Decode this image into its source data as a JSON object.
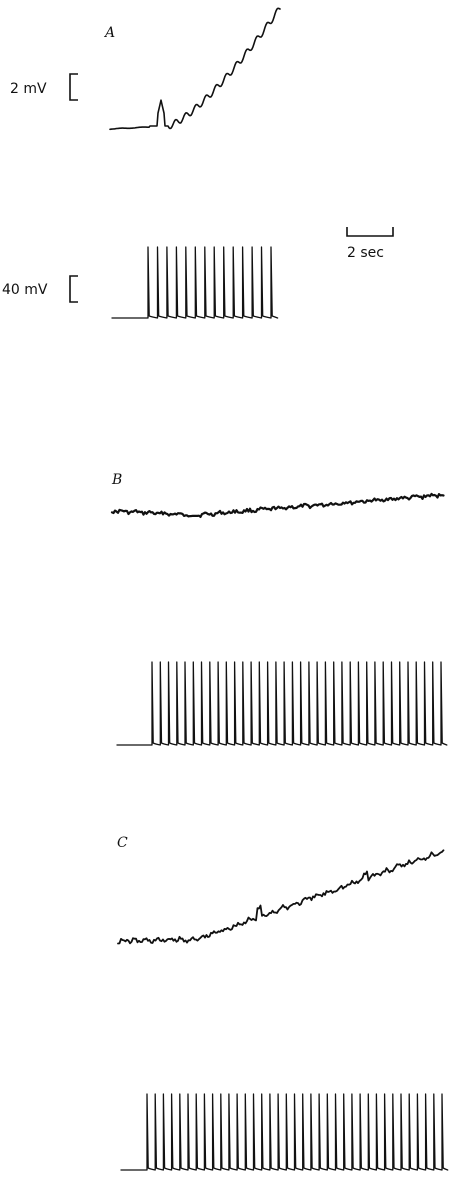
{
  "panels": [
    {
      "label": "A"
    },
    {
      "label": "B"
    },
    {
      "label": "C"
    }
  ],
  "scale_bars": {
    "voltage_small": "2 mV",
    "voltage_large": "40 mV",
    "time": "2 sec"
  }
}
